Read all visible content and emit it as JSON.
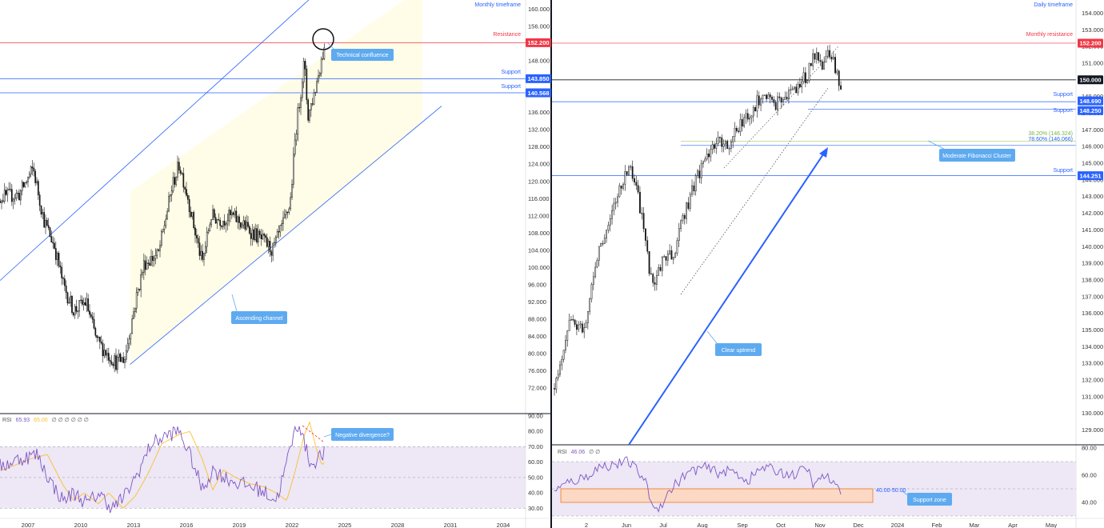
{
  "colors": {
    "up": "#151515",
    "channel": "#2962ff",
    "channel_fill": "#fffde7",
    "support": "#2962ff",
    "resistance": "#f23645",
    "rsi_line": "#7e57c2",
    "rsi_ma": "#fbc02d",
    "rsi_band": "#ede7f6",
    "callout": "#5eaaf0",
    "support_zone": "#fbd9c4",
    "fib": "#9ccc65"
  },
  "left_panel": {
    "timeframe_label": "Monthly timeframe",
    "resistance": {
      "label": "Resistance",
      "value": "152.200"
    },
    "support_1": {
      "label": "Support",
      "value": "143.850"
    },
    "support_2": {
      "label": "Support",
      "value": "140.568"
    },
    "callouts": {
      "confluence": "Technical confluence",
      "channel": "Ascending channel",
      "divergence": "Negative divergence?"
    },
    "rsi_legend": {
      "name": "RSI",
      "value": "65.93",
      "ma": "65.00",
      "tail": "∅ ∅ ∅ ∅ ∅ ∅"
    },
    "price_axis": [
      "160.000",
      "156.000",
      "152.000",
      "148.000",
      "144.000",
      "140.000",
      "136.000",
      "132.000",
      "128.000",
      "124.000",
      "120.000",
      "116.000",
      "112.000",
      "108.000",
      "104.000",
      "100.000",
      "96.000",
      "92.000",
      "88.000",
      "84.000",
      "80.000",
      "76.000",
      "72.000"
    ],
    "rsi_axis": [
      "90.00",
      "80.00",
      "70.00",
      "60.00",
      "50.00",
      "40.00",
      "30.00"
    ],
    "time_axis": [
      "2007",
      "2010",
      "2013",
      "2016",
      "2019",
      "2022",
      "2025",
      "2028",
      "2031",
      "2034"
    ]
  },
  "right_panel": {
    "timeframe_label": "Daily timeframe",
    "resistance": {
      "label": "Monthly resistance",
      "value": "152.200"
    },
    "level_150": {
      "value": "150.000"
    },
    "support_1": {
      "label": "Support",
      "value": "148.690"
    },
    "support_2": {
      "label": "Support",
      "value": "148.250"
    },
    "support_3": {
      "label": "Support",
      "value": "144.251"
    },
    "fib_1": "38.20% (146.324)",
    "fib_2": "78.60% (146.066)",
    "callouts": {
      "fib_cluster": "Moderate Fibonacci Cluster",
      "uptrend": "Clear uptrend",
      "support_zone": "Support zone"
    },
    "support_zone_label": "40.00-50.00",
    "rsi_legend": {
      "name": "RSI",
      "value": "46.06",
      "tail": "∅ ∅"
    },
    "price_axis": [
      "154.000",
      "153.000",
      "152.000",
      "151.000",
      "150.000",
      "149.000",
      "148.000",
      "147.000",
      "146.000",
      "145.000",
      "144.000",
      "143.000",
      "142.000",
      "141.000",
      "140.000",
      "139.000",
      "138.000",
      "137.000",
      "136.000",
      "135.000",
      "134.000",
      "133.000",
      "132.000",
      "131.000",
      "130.000",
      "129.000"
    ],
    "rsi_axis": [
      "80.00",
      "60.00",
      "40.00"
    ],
    "time_axis": [
      "2",
      "Jun",
      "Jul",
      "Aug",
      "Sep",
      "Oct",
      "Nov",
      "Dec",
      "2024",
      "Feb",
      "Mar",
      "Apr",
      "May"
    ]
  },
  "chart_data": [
    {
      "type": "candlestick",
      "title": "Monthly timeframe",
      "x": [
        "2007",
        "2010",
        "2013",
        "2016",
        "2019",
        "2022",
        "2025",
        "2028",
        "2031",
        "2034"
      ],
      "ylim": [
        70,
        161
      ],
      "path": [
        [
          2005.0,
          116
        ],
        [
          2006.5,
          117
        ],
        [
          2007.3,
          123
        ],
        [
          2007.9,
          111
        ],
        [
          2008.5,
          105
        ],
        [
          2009.0,
          96
        ],
        [
          2009.6,
          90
        ],
        [
          2010.3,
          92
        ],
        [
          2010.9,
          83
        ],
        [
          2011.5,
          80
        ],
        [
          2012.0,
          78
        ],
        [
          2012.5,
          79
        ],
        [
          2013.1,
          92
        ],
        [
          2013.6,
          101
        ],
        [
          2014.4,
          103
        ],
        [
          2015.2,
          119
        ],
        [
          2015.6,
          124
        ],
        [
          2016.1,
          116
        ],
        [
          2016.5,
          108
        ],
        [
          2016.9,
          101
        ],
        [
          2017.4,
          112
        ],
        [
          2018.0,
          111
        ],
        [
          2018.6,
          112
        ],
        [
          2019.2,
          110
        ],
        [
          2019.8,
          108
        ],
        [
          2020.4,
          106
        ],
        [
          2020.9,
          104
        ],
        [
          2021.5,
          110
        ],
        [
          2021.9,
          115
        ],
        [
          2022.2,
          131
        ],
        [
          2022.7,
          148
        ],
        [
          2022.9,
          135
        ],
        [
          2023.3,
          141
        ],
        [
          2023.7,
          149
        ],
        [
          2023.85,
          151
        ]
      ],
      "levels": {
        "resistance": 152.2,
        "support": [
          143.85,
          140.568
        ]
      },
      "rsi": {
        "ylim": [
          25,
          90
        ],
        "last": 65.93,
        "ma_last": 65.0
      }
    },
    {
      "type": "candlestick",
      "title": "Daily timeframe",
      "x": [
        "2",
        "Jun",
        "Jul",
        "Aug",
        "Sep",
        "Oct",
        "Nov",
        "Dec",
        "2024",
        "Feb",
        "Mar",
        "Apr",
        "May"
      ],
      "ylim": [
        128.5,
        154.5
      ],
      "path": [
        [
          0,
          131.5
        ],
        [
          4,
          135.5
        ],
        [
          8,
          135
        ],
        [
          11,
          139
        ],
        [
          14,
          141
        ],
        [
          16,
          142.5
        ],
        [
          18,
          143.5
        ],
        [
          20,
          144.8
        ],
        [
          22,
          143.5
        ],
        [
          24,
          141
        ],
        [
          26,
          138
        ],
        [
          27,
          137.5
        ],
        [
          29,
          139.3
        ],
        [
          32,
          139.6
        ],
        [
          35,
          142
        ],
        [
          38,
          144
        ],
        [
          41,
          145.5
        ],
        [
          44,
          146.3
        ],
        [
          47,
          146
        ],
        [
          50,
          147.5
        ],
        [
          53,
          148
        ],
        [
          56,
          149.3
        ],
        [
          59,
          148.5
        ],
        [
          62,
          149
        ],
        [
          65,
          149.5
        ],
        [
          68,
          150.3
        ],
        [
          70,
          151.6
        ],
        [
          72,
          151
        ],
        [
          73,
          151.8
        ],
        [
          75,
          151.2
        ],
        [
          76,
          150.2
        ],
        [
          77,
          149.3
        ]
      ],
      "levels": {
        "monthly_resistance": 152.2,
        "level": 150.0,
        "support": [
          148.69,
          148.25,
          144.251
        ],
        "fib": [
          146.324,
          146.066
        ]
      },
      "rsi": {
        "ylim": [
          30,
          80
        ],
        "last": 46.06,
        "support_zone": [
          40,
          50
        ]
      }
    }
  ]
}
